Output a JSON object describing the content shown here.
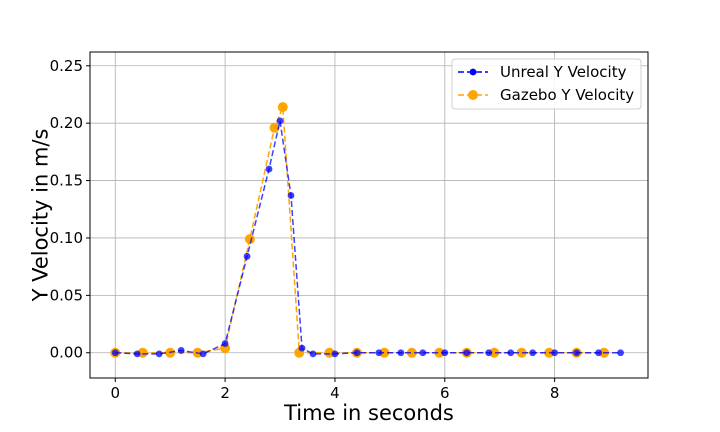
{
  "chart_data": {
    "type": "line",
    "xlabel": "Time in seconds",
    "ylabel": "Y Velocity in m/s",
    "xlim": [
      -0.46,
      9.7
    ],
    "ylim": [
      -0.022,
      0.262
    ],
    "xticks": [
      0,
      2,
      4,
      6,
      8
    ],
    "xtick_labels": [
      "0",
      "2",
      "4",
      "6",
      "8"
    ],
    "yticks": [
      0.0,
      0.05,
      0.1,
      0.15,
      0.2,
      0.25
    ],
    "ytick_labels": [
      "0.00",
      "0.05",
      "0.10",
      "0.15",
      "0.20",
      "0.25"
    ],
    "grid": true,
    "legend_position": "top-right",
    "series": [
      {
        "name": "Unreal Y Velocity",
        "color": "#0000ff",
        "linestyle": "dashed",
        "marker": "circle-small",
        "x": [
          0.0,
          0.4,
          0.8,
          1.2,
          1.6,
          2.0,
          2.4,
          2.8,
          3.0,
          3.2,
          3.4,
          3.6,
          4.0,
          4.4,
          4.8,
          5.2,
          5.6,
          6.0,
          6.4,
          6.8,
          7.2,
          7.6,
          8.0,
          8.4,
          8.8,
          9.2
        ],
        "y": [
          0.0,
          -0.001,
          -0.001,
          0.002,
          -0.001,
          0.008,
          0.084,
          0.16,
          0.202,
          0.137,
          0.004,
          -0.001,
          -0.001,
          0.0,
          0.0,
          0.0,
          0.0,
          0.0,
          0.0,
          0.0,
          0.0,
          0.0,
          0.0,
          0.0,
          0.0,
          0.0
        ]
      },
      {
        "name": "Gazebo Y Velocity",
        "color": "#ffa500",
        "linestyle": "dashed",
        "marker": "circle-large",
        "x": [
          0.0,
          0.5,
          1.0,
          1.5,
          2.0,
          2.45,
          2.9,
          3.05,
          3.35,
          3.9,
          4.4,
          4.9,
          5.4,
          5.9,
          6.4,
          6.9,
          7.4,
          7.9,
          8.4,
          8.9
        ],
        "y": [
          0.0,
          0.0,
          0.0,
          0.0,
          0.004,
          0.099,
          0.196,
          0.214,
          0.0,
          0.0,
          0.0,
          0.0,
          0.0,
          0.0,
          0.0,
          0.0,
          0.0,
          0.0,
          0.0,
          0.0
        ]
      }
    ]
  }
}
